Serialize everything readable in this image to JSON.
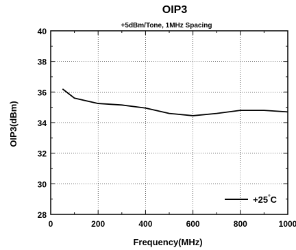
{
  "chart_data": {
    "type": "line",
    "title": "OIP3",
    "subtitle": "+5dBm/Tone, 1MHz Spacing",
    "xlabel": "Frequency(MHz)",
    "ylabel": "OIP3(dBm)",
    "xlim": [
      0,
      1000
    ],
    "ylim": [
      28,
      40
    ],
    "x_ticks": [
      0,
      200,
      400,
      600,
      800,
      1000
    ],
    "y_ticks": [
      28,
      30,
      32,
      34,
      36,
      38,
      40
    ],
    "x_minor_step": 100,
    "y_minor_step": 1,
    "grid": true,
    "legend_position": "bottom-right",
    "series": [
      {
        "name": "+25°C",
        "color": "#000000",
        "x": [
          50,
          100,
          200,
          300,
          400,
          500,
          600,
          700,
          800,
          900,
          1000
        ],
        "y": [
          36.2,
          35.6,
          35.25,
          35.15,
          34.95,
          34.6,
          34.45,
          34.6,
          34.8,
          34.8,
          34.7
        ]
      }
    ]
  }
}
